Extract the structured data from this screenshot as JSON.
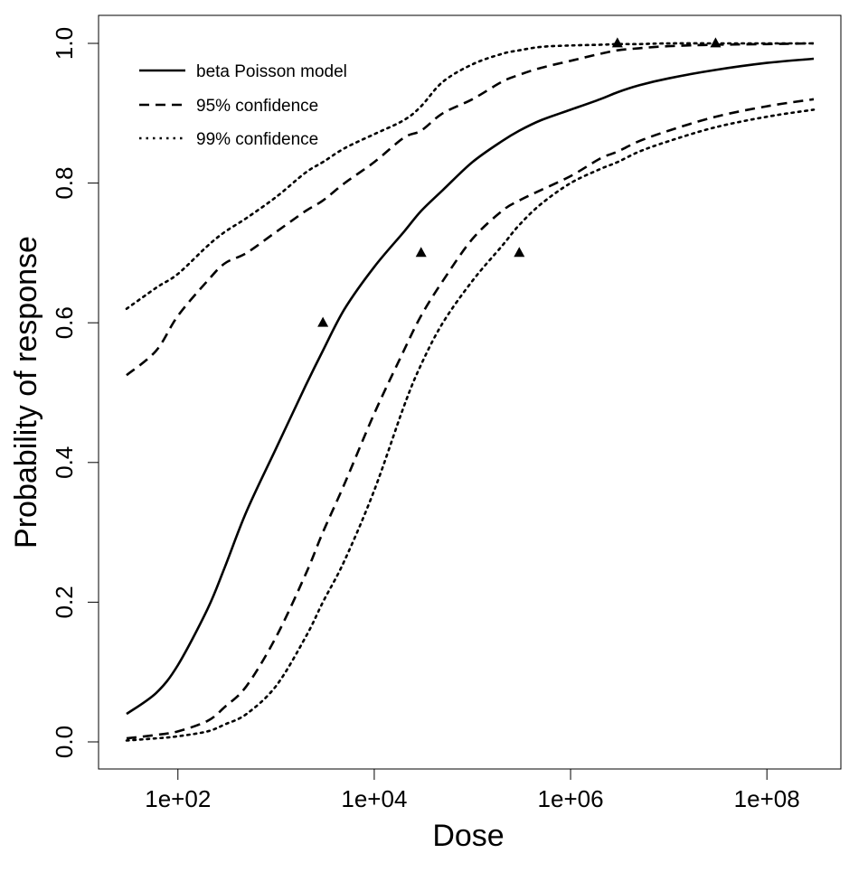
{
  "chart_data": {
    "type": "line",
    "title": "",
    "xlabel": "Dose",
    "ylabel": "Probability of response",
    "xscale": "log",
    "xlim": [
      30,
      300000000
    ],
    "ylim": [
      0,
      1
    ],
    "grid": false,
    "legend_position": "top-left",
    "x_ticks": [
      100,
      10000,
      1000000,
      100000000
    ],
    "x_tick_labels": [
      "1e+02",
      "1e+04",
      "1e+06",
      "1e+08"
    ],
    "y_ticks": [
      0.0,
      0.2,
      0.4,
      0.6,
      0.8,
      1.0
    ],
    "y_tick_labels": [
      "0.0",
      "0.2",
      "0.4",
      "0.6",
      "0.8",
      "1.0"
    ],
    "series": [
      {
        "name": "beta Poisson model",
        "dash": "solid",
        "x": [
          30,
          60,
          100,
          200,
          300,
          500,
          1000,
          2000,
          3000,
          5000,
          10000,
          20000,
          30000,
          50000,
          100000,
          200000,
          300000,
          500000,
          1000000,
          2000000,
          3000000,
          5000000,
          10000000,
          30000000,
          100000000,
          300000000
        ],
        "y": [
          0.04,
          0.07,
          0.11,
          0.19,
          0.25,
          0.33,
          0.42,
          0.51,
          0.56,
          0.62,
          0.68,
          0.73,
          0.76,
          0.79,
          0.83,
          0.86,
          0.875,
          0.89,
          0.905,
          0.92,
          0.93,
          0.94,
          0.95,
          0.962,
          0.972,
          0.978
        ]
      },
      {
        "name": "95% confidence",
        "dash": "dashed",
        "x": [
          30,
          60,
          100,
          200,
          300,
          500,
          1000,
          2000,
          3000,
          5000,
          10000,
          20000,
          30000,
          50000,
          100000,
          200000,
          300000,
          500000,
          1000000,
          2000000,
          3000000,
          5000000,
          10000000,
          30000000,
          100000000,
          300000000
        ],
        "y": [
          0.525,
          0.56,
          0.61,
          0.66,
          0.685,
          0.7,
          0.73,
          0.76,
          0.775,
          0.8,
          0.83,
          0.865,
          0.875,
          0.9,
          0.92,
          0.945,
          0.955,
          0.965,
          0.975,
          0.985,
          0.99,
          0.993,
          0.996,
          0.998,
          0.999,
          1.0
        ]
      },
      {
        "name": "95% confidence",
        "dash": "dashed",
        "x": [
          30,
          60,
          100,
          200,
          300,
          500,
          1000,
          2000,
          3000,
          5000,
          10000,
          20000,
          30000,
          50000,
          100000,
          200000,
          300000,
          500000,
          1000000,
          2000000,
          3000000,
          5000000,
          10000000,
          30000000,
          100000000,
          300000000
        ],
        "y": [
          0.005,
          0.01,
          0.015,
          0.03,
          0.05,
          0.08,
          0.15,
          0.24,
          0.3,
          0.37,
          0.47,
          0.56,
          0.61,
          0.66,
          0.72,
          0.76,
          0.775,
          0.79,
          0.81,
          0.835,
          0.845,
          0.86,
          0.875,
          0.895,
          0.91,
          0.92
        ]
      },
      {
        "name": "99% confidence",
        "dash": "dotted",
        "x": [
          30,
          60,
          100,
          200,
          300,
          500,
          1000,
          2000,
          3000,
          5000,
          10000,
          20000,
          30000,
          50000,
          100000,
          200000,
          300000,
          500000,
          1000000,
          2000000,
          3000000,
          5000000,
          10000000,
          30000000,
          100000000,
          300000000
        ],
        "y": [
          0.62,
          0.65,
          0.67,
          0.71,
          0.73,
          0.75,
          0.78,
          0.815,
          0.83,
          0.85,
          0.87,
          0.89,
          0.91,
          0.945,
          0.97,
          0.985,
          0.99,
          0.995,
          0.997,
          0.998,
          0.999,
          0.999,
          1.0,
          1.0,
          1.0,
          1.0
        ]
      },
      {
        "name": "99% confidence",
        "dash": "dotted",
        "x": [
          30,
          60,
          100,
          200,
          300,
          500,
          1000,
          2000,
          3000,
          5000,
          10000,
          20000,
          30000,
          50000,
          100000,
          200000,
          300000,
          500000,
          1000000,
          2000000,
          3000000,
          5000000,
          10000000,
          30000000,
          100000000,
          300000000
        ],
        "y": [
          0.002,
          0.005,
          0.008,
          0.015,
          0.025,
          0.04,
          0.08,
          0.15,
          0.2,
          0.26,
          0.36,
          0.48,
          0.54,
          0.6,
          0.66,
          0.71,
          0.74,
          0.77,
          0.8,
          0.82,
          0.83,
          0.845,
          0.86,
          0.88,
          0.895,
          0.905
        ]
      }
    ],
    "observed_points": {
      "marker": "triangle",
      "x": [
        3000,
        30000,
        300000,
        3000000,
        30000000
      ],
      "y": [
        0.6,
        0.7,
        0.7,
        1.0,
        1.0
      ]
    },
    "legend": [
      {
        "label": "beta Poisson model",
        "dash": "solid"
      },
      {
        "label": "95% confidence",
        "dash": "dashed"
      },
      {
        "label": "99% confidence",
        "dash": "dotted"
      }
    ]
  }
}
